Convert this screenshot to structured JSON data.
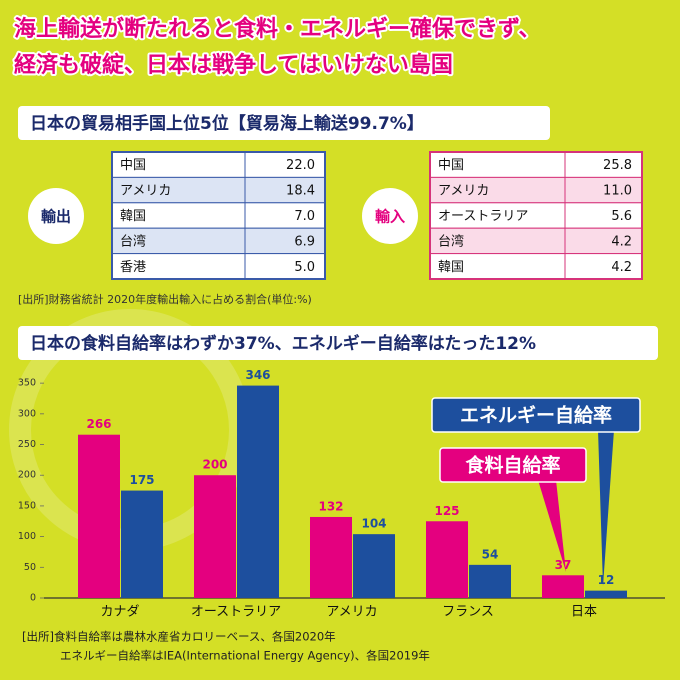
{
  "title": [
    "海上輸送が断たれると食料・エネルギー確保できず、",
    "経済も破綻、日本は戦争してはいけない島国"
  ],
  "trade": {
    "heading": "日本の貿易相手国上位5位【貿易海上輸送99.7%】",
    "export": {
      "label": "輸出",
      "rows": [
        [
          "中国",
          "22.0"
        ],
        [
          "アメリカ",
          "18.4"
        ],
        [
          "韓国",
          "7.0"
        ],
        [
          "台湾",
          "6.9"
        ],
        [
          "香港",
          "5.0"
        ]
      ]
    },
    "import": {
      "label": "輸入",
      "rows": [
        [
          "中国",
          "25.8"
        ],
        [
          "アメリカ",
          "11.0"
        ],
        [
          "オーストラリア",
          "5.6"
        ],
        [
          "台湾",
          "4.2"
        ],
        [
          "韓国",
          "4.2"
        ]
      ]
    },
    "source": "[出所]財務省統計 2020年度輸出輸入に占める割合(単位:%)"
  },
  "chart_data": {
    "type": "bar",
    "title": "日本の食料自給率はわずか37%、エネルギー自給率はたった12%",
    "categories": [
      "カナダ",
      "オーストラリア",
      "アメリカ",
      "フランス",
      "日本"
    ],
    "series": [
      {
        "name": "食料自給率",
        "color": "#e4007f",
        "values": [
          266,
          200,
          132,
          125,
          37
        ]
      },
      {
        "name": "エネルギー自給率",
        "color": "#1d4f9e",
        "values": [
          175,
          346,
          104,
          54,
          12
        ]
      }
    ],
    "ylim": [
      0,
      360
    ],
    "yticks": [
      0,
      50,
      100,
      150,
      200,
      250,
      300,
      350
    ],
    "grid": false,
    "source": [
      "[出所]食料自給率は農林水産省カロリーベース、各国2020年",
      "エネルギー自給率はIEA(International Energy Agency)、各国2019年"
    ]
  }
}
